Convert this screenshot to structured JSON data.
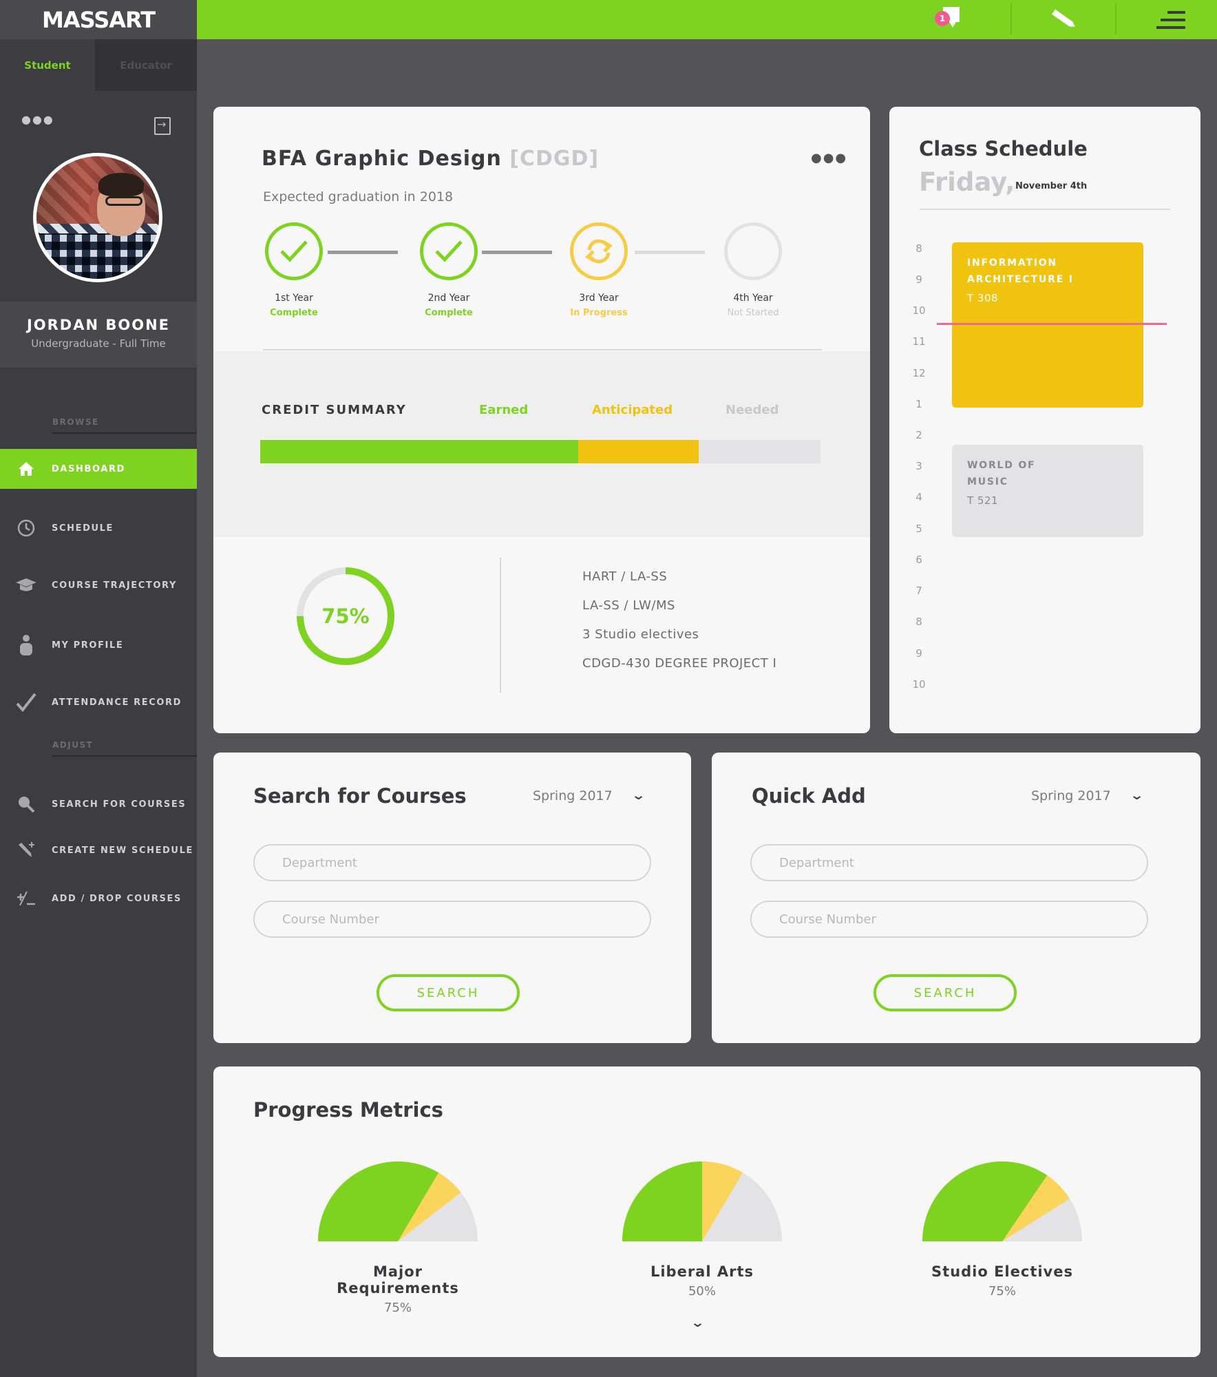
{
  "app": {
    "brand": "MASSART",
    "role_tabs": [
      "Student",
      "Educator"
    ],
    "accent_color": "#7ed321",
    "warning_color": "#f0c30f"
  },
  "topbar": {
    "notification_count": "1",
    "icons": [
      "chat-bubble-icon",
      "pencil-icon",
      "menu-icon"
    ]
  },
  "profile": {
    "name": "JORDAN BOONE",
    "status": "Undergraduate - Full Time"
  },
  "sidebar": {
    "browse_label": "BROWSE",
    "adjust_label": "ADJUST",
    "browse_items": [
      {
        "label": "DASHBOARD",
        "icon": "home-icon",
        "active": true
      },
      {
        "label": "SCHEDULE",
        "icon": "clock-icon"
      },
      {
        "label": "COURSE TRAJECTORY",
        "icon": "graduation-cap-icon"
      },
      {
        "label": "MY PROFILE",
        "icon": "person-icon"
      },
      {
        "label": "ATTENDANCE RECORD",
        "icon": "checkmark-icon"
      }
    ],
    "adjust_items": [
      {
        "label": "SEARCH FOR COURSES",
        "icon": "search-icon"
      },
      {
        "label": "CREATE NEW SCHEDULE",
        "icon": "pencil-plus-icon"
      },
      {
        "label": "ADD / DROP COURSES",
        "icon": "plus-minus-icon"
      }
    ]
  },
  "program": {
    "title": "BFA Graphic Design",
    "code": "[CDGD]",
    "graduation": "Expected graduation in 2018",
    "years": [
      {
        "label": "1st Year",
        "status": "Complete",
        "state": "complete"
      },
      {
        "label": "2nd Year",
        "status": "Complete",
        "state": "complete"
      },
      {
        "label": "3rd Year",
        "status": "In Progress",
        "state": "progress"
      },
      {
        "label": "4th Year",
        "status": "Not Started",
        "state": "not-started"
      }
    ],
    "credit_summary": {
      "title": "CREDIT SUMMARY",
      "legend": [
        "Earned",
        "Anticipated",
        "Needed"
      ],
      "earned_fraction": 0.567,
      "anticipated_fraction": 0.216
    },
    "completion_pct": "75%",
    "completion_value": 0.75,
    "remaining_requirements": [
      "HART / LA-SS",
      "LA-SS / LW/MS",
      "3 Studio electives",
      "CDGD-430 DEGREE PROJECT I"
    ]
  },
  "schedule": {
    "title": "Class Schedule",
    "day": "Friday,",
    "date": "November 4th",
    "hours": [
      "8",
      "9",
      "10",
      "11",
      "12",
      "1",
      "2",
      "3",
      "4",
      "5",
      "6",
      "7",
      "8",
      "9",
      "10"
    ],
    "classes": [
      {
        "name_line1": "INFORMATION",
        "name_line2": "ARCHITECTURE I",
        "room": "T 308",
        "color": "#f0c30f"
      },
      {
        "name_line1": "WORLD OF",
        "name_line2": "MUSIC",
        "room": "T 521",
        "color": "#e3e3e6"
      }
    ]
  },
  "search_courses": {
    "title": "Search for Courses",
    "term": "Spring 2017",
    "department_placeholder": "Department",
    "course_placeholder": "Course Number",
    "button": "SEARCH"
  },
  "quick_add": {
    "title": "Quick Add",
    "term": "Spring 2017",
    "department_placeholder": "Department",
    "course_placeholder": "Course Number",
    "button": "SEARCH"
  },
  "progress_metrics": {
    "title": "Progress Metrics",
    "items": [
      {
        "name": "Major Requirements",
        "value": "75%",
        "earned": 0.67,
        "anticipated": 0.12
      },
      {
        "name": "Liberal Arts",
        "value": "50%",
        "earned": 0.5,
        "anticipated": 0.17
      },
      {
        "name": "Studio Electives",
        "value": "75%",
        "earned": 0.69,
        "anticipated": 0.13
      }
    ]
  }
}
